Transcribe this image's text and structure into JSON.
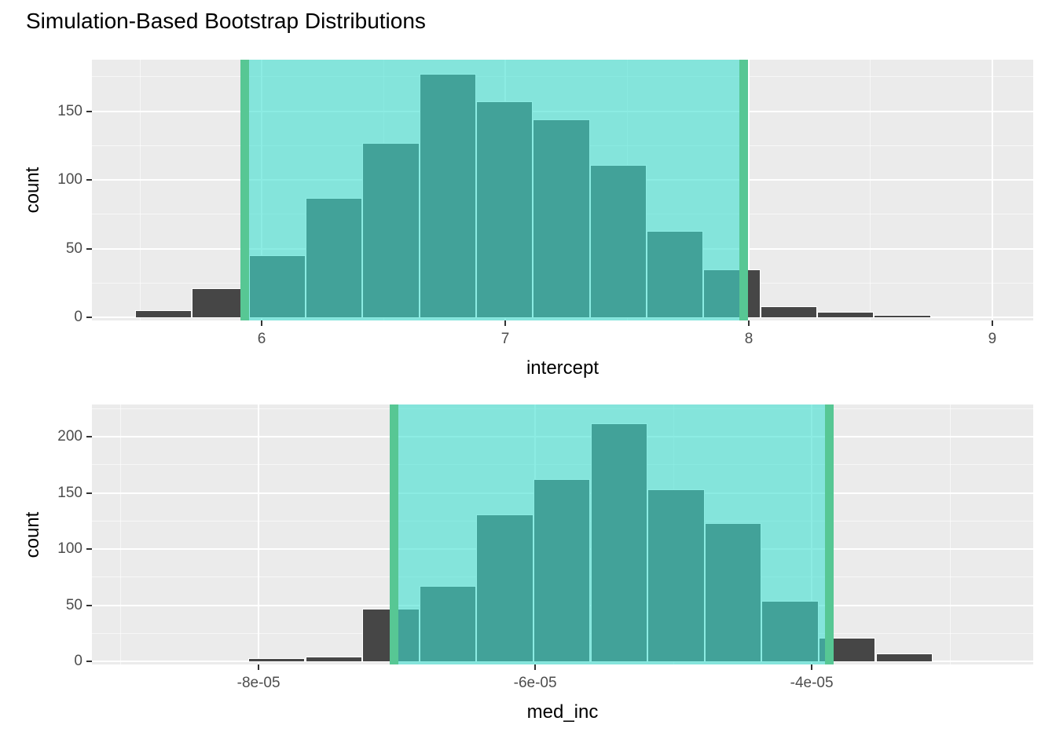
{
  "figure": {
    "title": "Simulation-Based Bootstrap Distributions"
  },
  "colors": {
    "panel_background": "#EBEBEB",
    "grid": "#FFFFFF",
    "bar_fill": "#464646",
    "bar_border": "#FFFFFF",
    "ci_fill": "rgba(64,224,208,0.6)",
    "ci_line": "#57C794",
    "tick_text": "#4D4D4D",
    "tick_mark": "#333333",
    "title_text": "#000000"
  },
  "chart_data": [
    {
      "type": "bar",
      "name": "intercept-bootstrap-histogram",
      "xlabel": "intercept",
      "ylabel": "count",
      "x_domain": [
        5.303,
        9.168
      ],
      "y_domain": [
        -2.3,
        187.4
      ],
      "x_ticks": [
        {
          "v": 6,
          "label": "6"
        },
        {
          "v": 7,
          "label": "7"
        },
        {
          "v": 8,
          "label": "8"
        },
        {
          "v": 9,
          "label": "9"
        }
      ],
      "y_ticks": [
        {
          "v": 0,
          "label": "0"
        },
        {
          "v": 50,
          "label": "50"
        },
        {
          "v": 100,
          "label": "100"
        },
        {
          "v": 150,
          "label": "150"
        }
      ],
      "x_minor": [
        5.5,
        6.5,
        7.5,
        8.5
      ],
      "y_minor": [
        25,
        75,
        125,
        175
      ],
      "bins": {
        "start": 5.4806,
        "width": 0.23333
      },
      "counts": [
        5,
        21,
        45,
        87,
        127,
        177,
        157,
        144,
        111,
        63,
        35,
        8,
        4,
        2
      ],
      "ci": {
        "lower": 5.93,
        "upper": 7.98
      },
      "grid": true,
      "legend": "none"
    },
    {
      "type": "bar",
      "name": "med-inc-bootstrap-histogram",
      "xlabel": "med_inc",
      "ylabel": "count",
      "x_domain": [
        -9.205e-05,
        -2.398e-05
      ],
      "y_domain": [
        -2.8,
        228.7
      ],
      "x_ticks": [
        {
          "v": -8e-05,
          "label": "-8e-05"
        },
        {
          "v": -6e-05,
          "label": "-6e-05"
        },
        {
          "v": -4e-05,
          "label": "-4e-05"
        }
      ],
      "y_ticks": [
        {
          "v": 0,
          "label": "0"
        },
        {
          "v": 50,
          "label": "50"
        },
        {
          "v": 100,
          "label": "100"
        },
        {
          "v": 150,
          "label": "150"
        },
        {
          "v": 200,
          "label": "200"
        }
      ],
      "x_minor": [
        -9e-05,
        -7e-05,
        -5e-05,
        -3e-05
      ],
      "y_minor": [
        25,
        75,
        125,
        175,
        225
      ],
      "bins": {
        "start": -8.9e-05,
        "width": 4.125e-06
      },
      "counts": [
        1,
        1,
        3,
        4,
        47,
        67,
        131,
        162,
        212,
        153,
        123,
        54,
        21,
        7
      ],
      "ci": {
        "lower": -7.02e-05,
        "upper": -3.87e-05
      },
      "grid": true,
      "legend": "none"
    }
  ]
}
